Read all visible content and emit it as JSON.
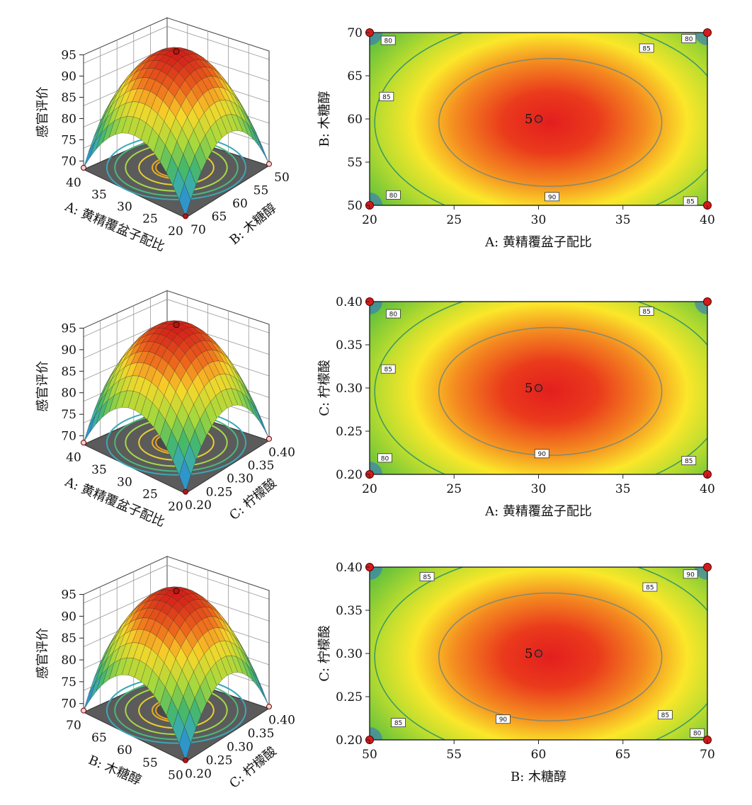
{
  "chart_data": [
    {
      "type": "surface",
      "panel": "row1-3d",
      "xlabel": "A: 黄精覆盆子配比",
      "ylabel": "B: 木糖醇",
      "zlabel": "感官评价",
      "x_ticks": [
        "40",
        "35",
        "30",
        "25",
        "20"
      ],
      "y_ticks": [
        "50",
        "55",
        "60",
        "65",
        "70"
      ],
      "z_ticks": [
        "95",
        "90",
        "85",
        "80",
        "75",
        "70"
      ],
      "zlim": [
        68,
        95
      ],
      "peak": {
        "x": 30,
        "y": 60,
        "z": 95
      }
    },
    {
      "type": "contour",
      "panel": "row1-contour",
      "xlabel": "A: 黄精覆盆子配比",
      "ylabel": "B: 木糖醇",
      "xlim": [
        20,
        40
      ],
      "ylim": [
        50,
        70
      ],
      "x_ticks": [
        "20",
        "25",
        "30",
        "35",
        "40"
      ],
      "y_ticks": [
        "50",
        "55",
        "60",
        "65",
        "70"
      ],
      "center": {
        "x": 30,
        "y": 60,
        "label": "5"
      },
      "contour_labels": [
        {
          "text": "80",
          "x": 21.1,
          "y": 69.1
        },
        {
          "text": "80",
          "x": 38.9,
          "y": 69.3
        },
        {
          "text": "85",
          "x": 36.4,
          "y": 68.2
        },
        {
          "text": "85",
          "x": 21.0,
          "y": 62.6
        },
        {
          "text": "80",
          "x": 21.4,
          "y": 51.2
        },
        {
          "text": "90",
          "x": 30.8,
          "y": 51.0
        },
        {
          "text": "85",
          "x": 39.0,
          "y": 50.5
        }
      ],
      "design_points": [
        {
          "x": 20,
          "y": 50
        },
        {
          "x": 20,
          "y": 70
        },
        {
          "x": 40,
          "y": 50
        },
        {
          "x": 40,
          "y": 70
        }
      ]
    },
    {
      "type": "surface",
      "panel": "row2-3d",
      "xlabel": "A: 黄精覆盆子配比",
      "ylabel": "C: 柠檬酸",
      "zlabel": "感官评价",
      "x_ticks": [
        "40",
        "35",
        "30",
        "25",
        "20"
      ],
      "y_ticks": [
        "0.40",
        "0.35",
        "0.30",
        "0.25",
        "0.20"
      ],
      "z_ticks": [
        "95",
        "90",
        "85",
        "80",
        "75",
        "70"
      ],
      "zlim": [
        68,
        95
      ],
      "peak": {
        "x": 30,
        "y": 0.3,
        "z": 95
      }
    },
    {
      "type": "contour",
      "panel": "row2-contour",
      "xlabel": "A: 黄精覆盆子配比",
      "ylabel": "C: 柠檬酸",
      "xlim": [
        20,
        40
      ],
      "ylim": [
        0.2,
        0.4
      ],
      "x_ticks": [
        "20",
        "25",
        "30",
        "35",
        "40"
      ],
      "y_ticks": [
        "0.20",
        "0.25",
        "0.30",
        "0.35",
        "0.40"
      ],
      "center": {
        "x": 30,
        "y": 0.3,
        "label": "5"
      },
      "contour_labels": [
        {
          "text": "80",
          "x": 21.4,
          "y": 0.386
        },
        {
          "text": "85",
          "x": 36.4,
          "y": 0.389
        },
        {
          "text": "85",
          "x": 21.1,
          "y": 0.322
        },
        {
          "text": "80",
          "x": 20.9,
          "y": 0.219
        },
        {
          "text": "90",
          "x": 30.2,
          "y": 0.224
        },
        {
          "text": "85",
          "x": 38.9,
          "y": 0.216
        }
      ],
      "design_points": [
        {
          "x": 20,
          "y": 0.2
        },
        {
          "x": 20,
          "y": 0.4
        },
        {
          "x": 40,
          "y": 0.2
        },
        {
          "x": 40,
          "y": 0.4
        }
      ]
    },
    {
      "type": "surface",
      "panel": "row3-3d",
      "xlabel": "B: 木糖醇",
      "ylabel": "C: 柠檬酸",
      "zlabel": "感官评价",
      "x_ticks": [
        "70",
        "65",
        "60",
        "55",
        "50"
      ],
      "y_ticks": [
        "0.40",
        "0.35",
        "0.30",
        "0.25",
        "0.20"
      ],
      "z_ticks": [
        "95",
        "90",
        "85",
        "80",
        "75",
        "70"
      ],
      "zlim": [
        68,
        95
      ],
      "peak": {
        "x": 60,
        "y": 0.3,
        "z": 95
      }
    },
    {
      "type": "contour",
      "panel": "row3-contour",
      "xlabel": "B: 木糖醇",
      "ylabel": "C: 柠檬酸",
      "xlim": [
        50,
        70
      ],
      "ylim": [
        0.2,
        0.4
      ],
      "x_ticks": [
        "50",
        "55",
        "60",
        "65",
        "70"
      ],
      "y_ticks": [
        "0.20",
        "0.25",
        "0.30",
        "0.35",
        "0.40"
      ],
      "center": {
        "x": 60,
        "y": 0.3,
        "label": "5"
      },
      "contour_labels": [
        {
          "text": "85",
          "x": 53.4,
          "y": 0.389
        },
        {
          "text": "90",
          "x": 69.0,
          "y": 0.392
        },
        {
          "text": "85",
          "x": 66.6,
          "y": 0.377
        },
        {
          "text": "85",
          "x": 51.7,
          "y": 0.22
        },
        {
          "text": "90",
          "x": 57.9,
          "y": 0.224
        },
        {
          "text": "85",
          "x": 67.5,
          "y": 0.229
        },
        {
          "text": "80",
          "x": 69.4,
          "y": 0.208
        }
      ],
      "design_points": [
        {
          "x": 50,
          "y": 0.2
        },
        {
          "x": 50,
          "y": 0.4
        },
        {
          "x": 70,
          "y": 0.2
        },
        {
          "x": 70,
          "y": 0.4
        }
      ]
    }
  ]
}
